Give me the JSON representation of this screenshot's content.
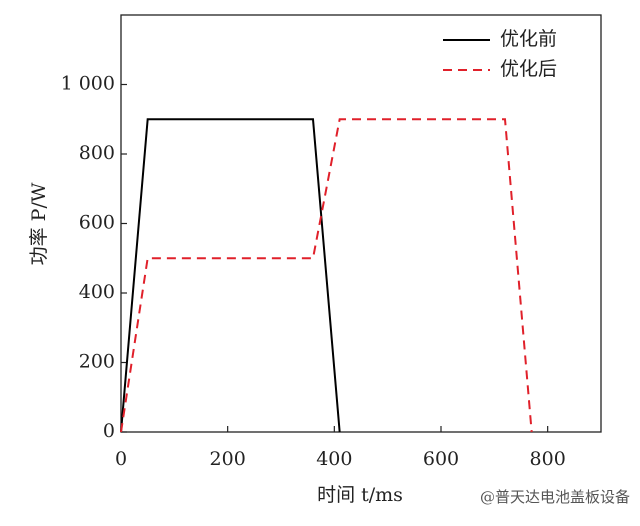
{
  "chart_data": {
    "type": "line",
    "xlabel": "时间 t/ms",
    "ylabel": "功率 P/W",
    "xlim": [
      0,
      900
    ],
    "ylim": [
      0,
      1200
    ],
    "xticks": [
      0,
      200,
      400,
      600,
      800
    ],
    "yticks": [
      0,
      200,
      400,
      600,
      800,
      {
        "value": 1000,
        "label": "1 000"
      }
    ],
    "legend": "upper right",
    "series": [
      {
        "name": "优化前",
        "color": "#000000",
        "dash": "solid",
        "x": [
          0,
          50,
          360,
          410
        ],
        "values": [
          0,
          900,
          900,
          0
        ]
      },
      {
        "name": "优化后",
        "color": "#e0202a",
        "dash": "dashed",
        "x": [
          0,
          50,
          360,
          410,
          720,
          770
        ],
        "values": [
          0,
          500,
          500,
          900,
          900,
          0
        ]
      }
    ],
    "watermark": "@普天达电池盖板设备"
  }
}
